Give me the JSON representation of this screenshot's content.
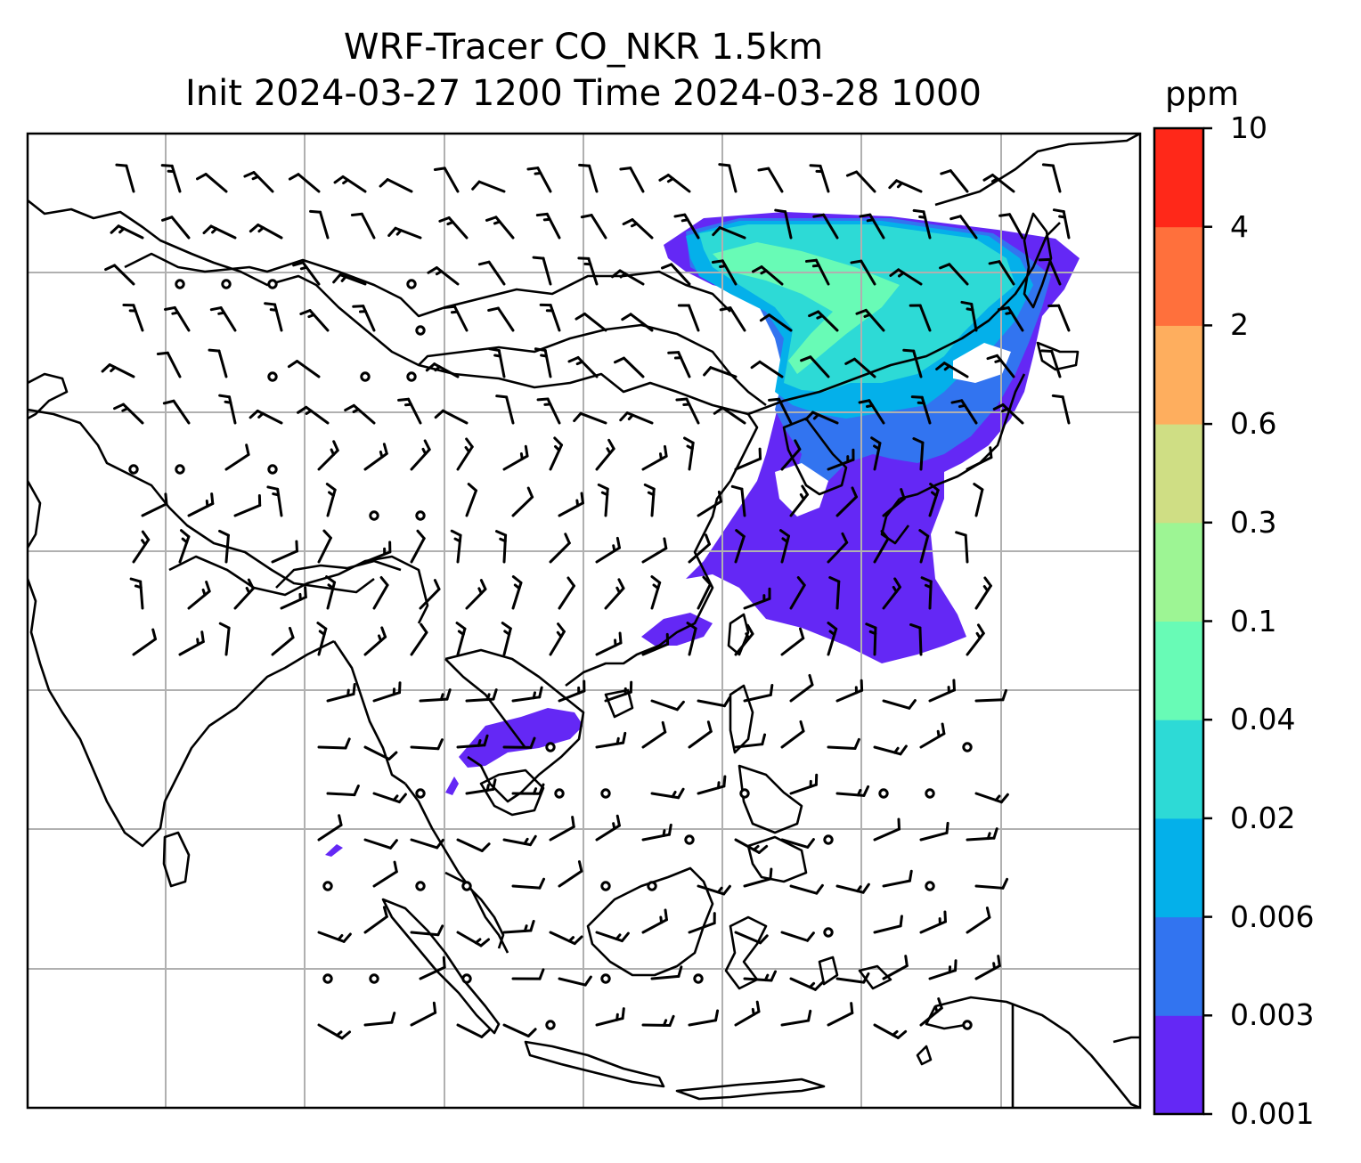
{
  "title": {
    "line1": "WRF-Tracer CO_NKR 1.5km",
    "line2": "Init 2024-03-27 1200 Time 2024-03-28 1000"
  },
  "colorbar": {
    "unit": "ppm",
    "levels": [
      "0.001",
      "0.003",
      "0.006",
      "0.02",
      "0.04",
      "0.1",
      "0.3",
      "0.6",
      "2",
      "4",
      "10"
    ],
    "colors": [
      "#6428f5",
      "#3274f0",
      "#04b0ea",
      "#2ddad6",
      "#68fbb6",
      "#9df594",
      "#cfde84",
      "#feae5e",
      "#ff703c",
      "#ff2819"
    ]
  },
  "map": {
    "plume_colors": {
      "lowest": "#6428f5",
      "low": "#3274f0",
      "mid": "#04b0ea",
      "high": "#2ddad6",
      "peak": "#68fbb6"
    },
    "gridline_color": "#b0b0b0",
    "coastline_color": "#000000",
    "wind_barb_color": "#000000"
  }
}
